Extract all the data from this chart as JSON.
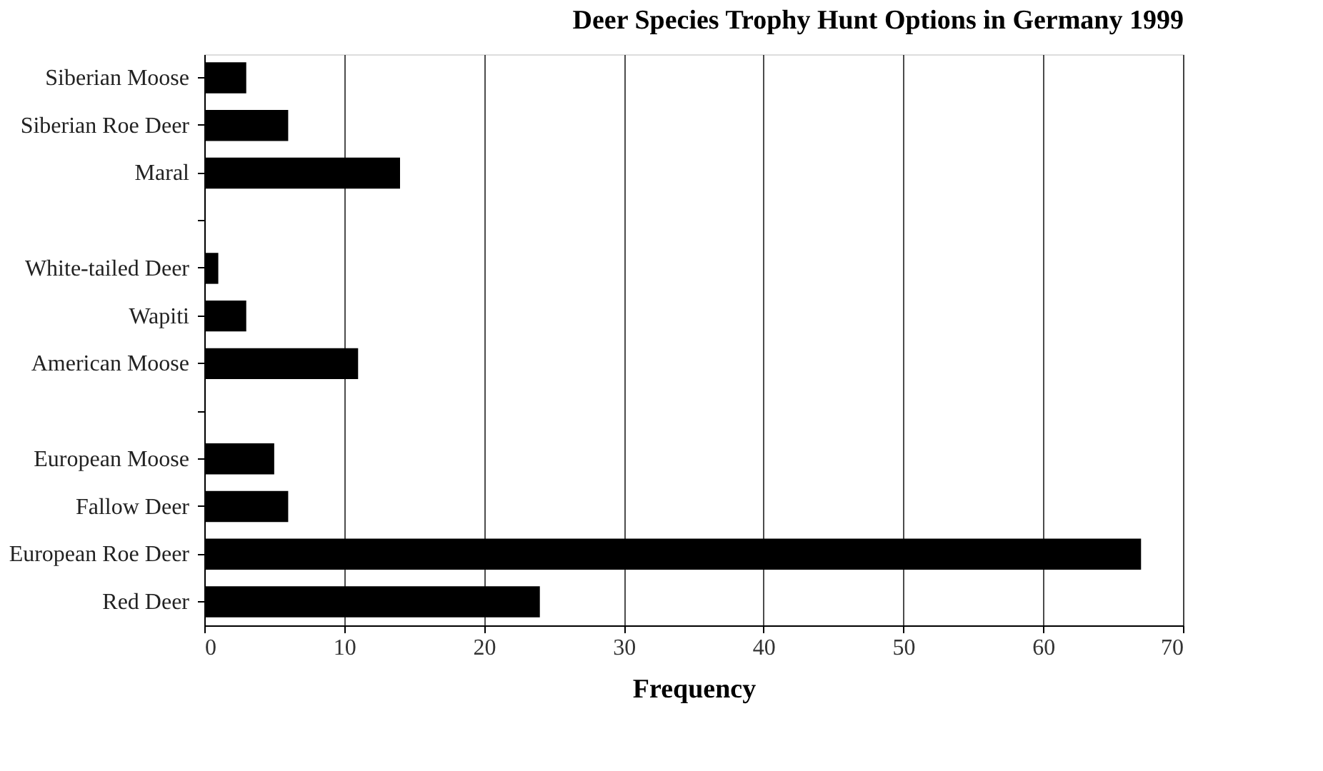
{
  "chart_data": {
    "type": "bar",
    "orientation": "horizontal",
    "title": "Deer Species Trophy Hunt Options in Germany 1999",
    "xlabel": "Frequency",
    "categories": [
      "Siberian Moose",
      "Siberian Roe Deer",
      "Maral",
      null,
      "White-tailed Deer",
      "Wapiti",
      "American Moose",
      null,
      "European Moose",
      "Fallow Deer",
      "European Roe Deer",
      "Red Deer"
    ],
    "values": [
      3,
      6,
      14,
      null,
      1,
      3,
      11,
      null,
      5,
      6,
      67,
      24
    ],
    "color": "#000000",
    "xlim": [
      0,
      70
    ],
    "xticks": [
      0,
      10,
      20,
      30,
      40,
      50,
      60,
      70
    ],
    "grid": "x"
  }
}
